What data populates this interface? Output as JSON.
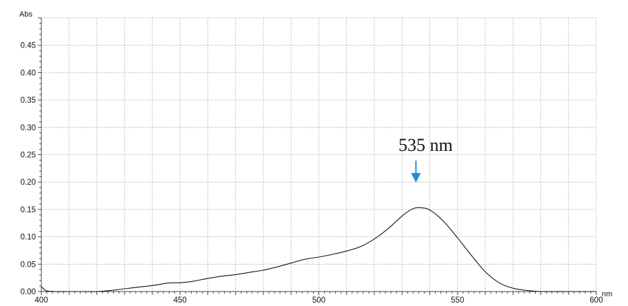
{
  "chart_data": {
    "type": "line",
    "xlabel": "nm",
    "ylabel": "Abs",
    "xlim": [
      400,
      600
    ],
    "ylim": [
      0,
      0.5
    ],
    "x_ticks": [
      400,
      450,
      500,
      550,
      600
    ],
    "x_tick_labels": [
      "400",
      "450",
      "500",
      "550",
      "600"
    ],
    "y_ticks": [
      0,
      0.05,
      0.1,
      0.15,
      0.2,
      0.25,
      0.3,
      0.35,
      0.4,
      0.45
    ],
    "y_tick_labels": [
      "0.00",
      "0.05",
      "0.10",
      "0.15",
      "0.20",
      "0.25",
      "0.30",
      "0.35",
      "0.40",
      "0.45"
    ],
    "grid": true,
    "series": [
      {
        "x": [
          400,
          401,
          402,
          405,
          410,
          415,
          420,
          425,
          430,
          435,
          440,
          445,
          448,
          450,
          452,
          455,
          460,
          465,
          470,
          475,
          480,
          485,
          490,
          495,
          500,
          505,
          510,
          515,
          520,
          525,
          530,
          533,
          535,
          537,
          540,
          545,
          550,
          555,
          560,
          565,
          570,
          575,
          580,
          590,
          600
        ],
        "y": [
          0.009,
          0.004,
          0.001,
          0.0,
          0.0,
          0.0,
          0.0,
          0.002,
          0.005,
          0.008,
          0.011,
          0.015,
          0.016,
          0.016,
          0.017,
          0.019,
          0.024,
          0.028,
          0.031,
          0.035,
          0.039,
          0.045,
          0.052,
          0.059,
          0.063,
          0.068,
          0.074,
          0.082,
          0.096,
          0.115,
          0.138,
          0.149,
          0.153,
          0.153,
          0.149,
          0.128,
          0.098,
          0.066,
          0.036,
          0.016,
          0.006,
          0.002,
          0.0,
          0.0,
          0.0
        ]
      }
    ],
    "annotations": [
      {
        "text": "535 nm",
        "x": 535,
        "arrow_color": "#1e90d0"
      }
    ]
  }
}
